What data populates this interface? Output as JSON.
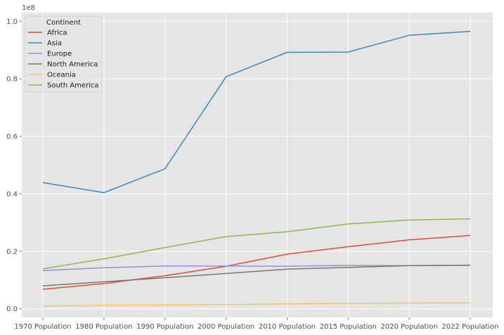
{
  "chart_data": {
    "type": "line",
    "title": "",
    "xlabel": "",
    "ylabel": "",
    "y_offset_label": "1e8",
    "categories": [
      "1970 Population",
      "1980 Population",
      "1990 Population",
      "2000 Population",
      "2010 Population",
      "2015 Population",
      "2020 Population",
      "2022 Population"
    ],
    "ylim": [
      -3000000,
      103000000
    ],
    "yticks": [
      0,
      20000000,
      40000000,
      60000000,
      80000000,
      100000000
    ],
    "ytick_labels": [
      "0.0",
      "0.2",
      "0.4",
      "0.6",
      "0.8",
      "1.0"
    ],
    "grid": true,
    "legend": {
      "title": "Continent",
      "placement": "top-left"
    },
    "series": [
      {
        "name": "Africa",
        "color": "#E24A33",
        "values": [
          6800000,
          8800000,
          11500000,
          14800000,
          19000000,
          21600000,
          24000000,
          25500000
        ]
      },
      {
        "name": "Asia",
        "color": "#348ABD",
        "values": [
          43900000,
          40400000,
          48700000,
          80700000,
          89200000,
          89300000,
          95100000,
          96500000
        ]
      },
      {
        "name": "Europe",
        "color": "#988ED5",
        "values": [
          13300000,
          14300000,
          14900000,
          14900000,
          14800000,
          15100000,
          15000000,
          15100000
        ]
      },
      {
        "name": "North America",
        "color": "#777777",
        "values": [
          8000000,
          9400000,
          10800000,
          12300000,
          13800000,
          14400000,
          15000000,
          15200000
        ]
      },
      {
        "name": "Oceania",
        "color": "#FBC15E",
        "values": [
          1000000,
          1200000,
          1300000,
          1500000,
          1700000,
          1900000,
          2000000,
          2100000
        ]
      },
      {
        "name": "South America",
        "color": "#8EBA42",
        "values": [
          13900000,
          17400000,
          21300000,
          25100000,
          26800000,
          29500000,
          30900000,
          31300000
        ]
      }
    ]
  }
}
